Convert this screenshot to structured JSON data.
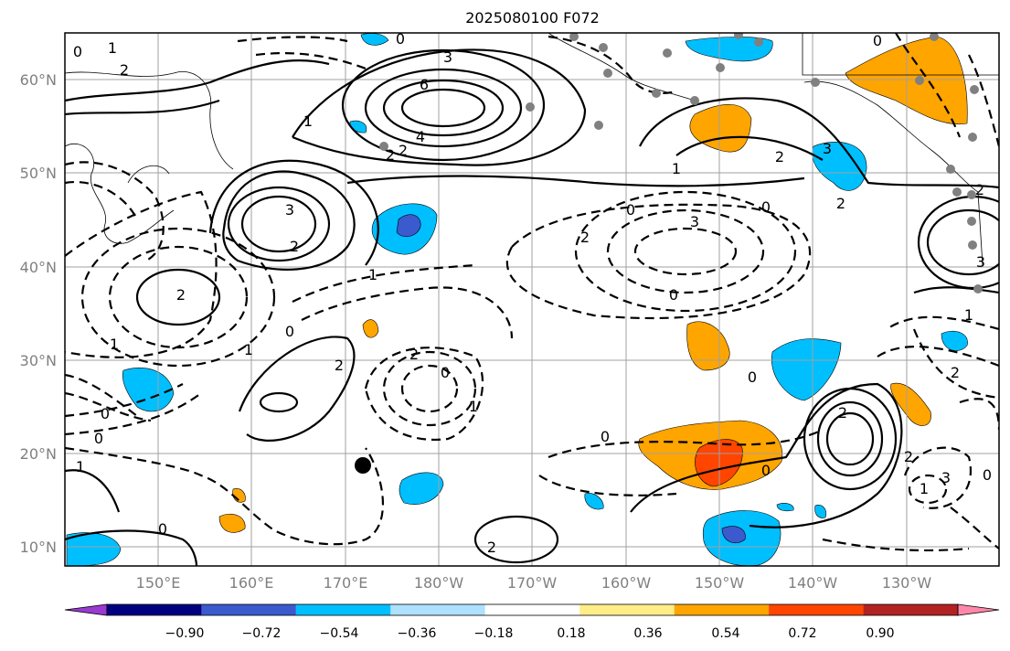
{
  "title": "2025080100 F072",
  "lat_labels": [
    "60°N",
    "50°N",
    "40°N",
    "30°N",
    "20°N",
    "10°N"
  ],
  "lon_labels": [
    "150°E",
    "160°E",
    "170°E",
    "180°W",
    "170°W",
    "160°W",
    "150°W",
    "140°W",
    "130°W"
  ],
  "colorbar": {
    "tick_labels": [
      "−0.90",
      "−0.72",
      "−0.54",
      "−0.36",
      "−0.18",
      "0.18",
      "0.36",
      "0.54",
      "0.72",
      "0.90"
    ],
    "colors": [
      "#9a3ad0",
      "#000080",
      "#3a5acd",
      "#00bfff",
      "#aee0ff",
      "#ffffff",
      "#ffee88",
      "#ffa500",
      "#ff4500",
      "#b22222",
      "#ff88aa"
    ]
  },
  "contour_labels": [
    "0",
    "1",
    "2",
    "3",
    "6",
    "4",
    "2",
    "2",
    "1",
    "0",
    "3",
    "2",
    "1",
    "0",
    "1",
    "2",
    "0",
    "1",
    "2",
    "2",
    "1",
    "0",
    "0",
    "1",
    "0",
    "2",
    "3",
    "2",
    "0",
    "0",
    "0",
    "2",
    "3",
    "1",
    "2",
    "1",
    "2",
    "0",
    "2",
    "0",
    "2",
    "0",
    "1",
    "3",
    "2",
    "0",
    "3",
    "0"
  ]
}
